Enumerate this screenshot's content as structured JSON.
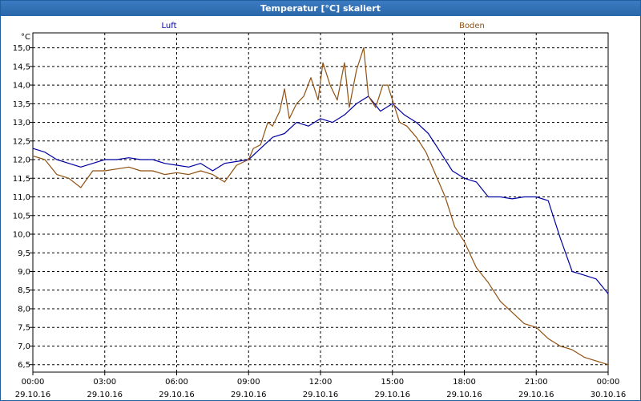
{
  "window": {
    "title": "Temperatur [°C] skaliert"
  },
  "chart_data": {
    "type": "line",
    "ylabel": "°C",
    "ylim": [
      6.3,
      15.4
    ],
    "xlim_hours": [
      0,
      24
    ],
    "grid": true,
    "legend_placement": "top",
    "y_ticks": [
      "15,0",
      "14,5",
      "14,0",
      "13,5",
      "13,0",
      "12,5",
      "12,0",
      "11,5",
      "11,0",
      "10,5",
      "10,0",
      "9,5",
      "9,0",
      "8,5",
      "8,0",
      "7,5",
      "7,0",
      "6,5"
    ],
    "y_tick_values": [
      15.0,
      14.5,
      14.0,
      13.5,
      13.0,
      12.5,
      12.0,
      11.5,
      11.0,
      10.5,
      10.0,
      9.5,
      9.0,
      8.5,
      8.0,
      7.5,
      7.0,
      6.5
    ],
    "x_ticks": [
      {
        "time": "00:00",
        "date": "29.10.16"
      },
      {
        "time": "03:00",
        "date": "29.10.16"
      },
      {
        "time": "06:00",
        "date": "29.10.16"
      },
      {
        "time": "09:00",
        "date": "29.10.16"
      },
      {
        "time": "12:00",
        "date": "29.10.16"
      },
      {
        "time": "15:00",
        "date": "29.10.16"
      },
      {
        "time": "18:00",
        "date": "29.10.16"
      },
      {
        "time": "21:00",
        "date": "29.10.16"
      },
      {
        "time": "00:00",
        "date": "30.10.16"
      }
    ],
    "series": [
      {
        "name": "Luft",
        "color": "#0000a0",
        "x": [
          0,
          0.5,
          1,
          1.5,
          2,
          2.5,
          3,
          3.5,
          4,
          4.5,
          5,
          5.5,
          6,
          6.5,
          7,
          7.5,
          8,
          8.5,
          9,
          9.5,
          10,
          10.5,
          11,
          11.5,
          12,
          12.5,
          13,
          13.5,
          14,
          14.5,
          15,
          15.5,
          16,
          16.5,
          17,
          17.5,
          18,
          18.5,
          19,
          19.5,
          20,
          20.5,
          21,
          21.5,
          22,
          22.5,
          23,
          23.5,
          24
        ],
        "values": [
          12.3,
          12.2,
          12.0,
          11.9,
          11.8,
          11.9,
          12.0,
          12.0,
          12.05,
          12.0,
          12.0,
          11.9,
          11.85,
          11.8,
          11.9,
          11.7,
          11.9,
          11.95,
          12.0,
          12.3,
          12.6,
          12.7,
          13.0,
          12.9,
          13.1,
          13.0,
          13.2,
          13.5,
          13.7,
          13.3,
          13.5,
          13.2,
          13.0,
          12.7,
          12.2,
          11.7,
          11.5,
          11.4,
          11.0,
          11.0,
          10.95,
          11.0,
          11.0,
          10.9,
          9.9,
          9.0,
          8.9,
          8.8,
          8.4
        ]
      },
      {
        "name": "Boden",
        "color": "#905010",
        "x": [
          0,
          0.5,
          1,
          1.5,
          2,
          2.5,
          3,
          3.5,
          4,
          4.5,
          5,
          5.5,
          6,
          6.5,
          7,
          7.5,
          8,
          8.5,
          9,
          9.2,
          9.5,
          9.8,
          10.0,
          10.3,
          10.5,
          10.7,
          11.0,
          11.3,
          11.6,
          11.9,
          12.1,
          12.4,
          12.7,
          13.0,
          13.2,
          13.5,
          13.8,
          14.0,
          14.3,
          14.6,
          14.8,
          15.0,
          15.3,
          15.6,
          16.0,
          16.4,
          16.8,
          17.2,
          17.6,
          18.0,
          18.5,
          19.0,
          19.5,
          20.0,
          20.5,
          21.0,
          21.5,
          22.0,
          22.5,
          23.0,
          23.5,
          24
        ],
        "values": [
          12.1,
          12.0,
          11.6,
          11.5,
          11.25,
          11.7,
          11.7,
          11.75,
          11.8,
          11.7,
          11.7,
          11.6,
          11.65,
          11.6,
          11.7,
          11.6,
          11.4,
          11.85,
          12.0,
          12.3,
          12.4,
          13.0,
          12.9,
          13.3,
          13.9,
          13.1,
          13.5,
          13.7,
          14.2,
          13.6,
          14.6,
          14.0,
          13.6,
          14.6,
          13.4,
          14.4,
          15.0,
          13.7,
          13.4,
          14.0,
          14.0,
          13.6,
          13.0,
          12.9,
          12.6,
          12.2,
          11.6,
          11.0,
          10.2,
          9.8,
          9.1,
          8.7,
          8.2,
          7.9,
          7.6,
          7.5,
          7.2,
          7.0,
          6.9,
          6.7,
          6.6,
          6.5
        ]
      }
    ]
  }
}
